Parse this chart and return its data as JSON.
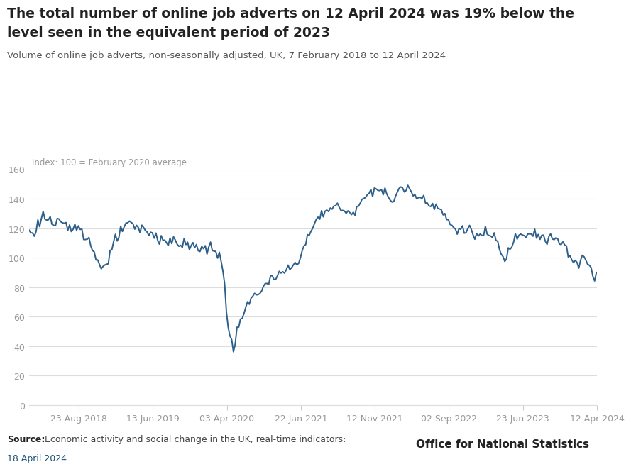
{
  "title_line1": "The total number of online job adverts on 12 April 2024 was 19% below the",
  "title_line2": "level seen in the equivalent period of 2023",
  "subtitle": "Volume of online job adverts, non-seasonally adjusted, UK, 7 February 2018 to 12 April 2024",
  "index_label": "Index: 100 = February 2020 average",
  "source_bold": "Source:",
  "source_text": " Economic activity and social change in the UK, real-time indicators:",
  "source_date": "18 April 2024",
  "ons_text": "Office for National Statistics",
  "line_color": "#2d5f8a",
  "background_color": "#ffffff",
  "title_color": "#222222",
  "subtitle_color": "#555555",
  "axis_label_color": "#999999",
  "tick_color": "#cccccc",
  "grid_color": "#dddddd",
  "source_color": "#444444",
  "source_bold_color": "#222222",
  "source_date_color": "#1a5276",
  "ylim": [
    0,
    160
  ],
  "yticks": [
    0,
    20,
    40,
    60,
    80,
    100,
    120,
    140,
    160
  ],
  "xtick_labels": [
    "23 Aug 2018",
    "13 Jun 2019",
    "03 Apr 2020",
    "22 Jan 2021",
    "12 Nov 2021",
    "02 Sep 2022",
    "23 Jun 2023",
    "12 Apr 2024"
  ],
  "figsize": [
    8.84,
    6.85
  ],
  "dpi": 100
}
